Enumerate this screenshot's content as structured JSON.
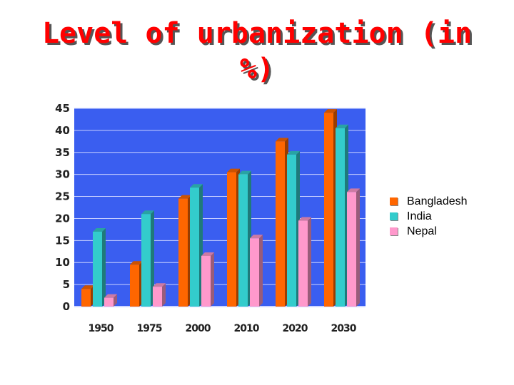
{
  "title_lines": [
    "Level of urbanization (in",
    "%)"
  ],
  "colors": {
    "plot_bg": "#3a5ef0",
    "Bangladesh": "#ff6600",
    "India": "#33cccc",
    "Nepal": "#ff99cc",
    "grid": "#c8d0ff"
  },
  "chart_data": {
    "type": "bar",
    "title": "Level of urbanization (in %)",
    "categories": [
      "1950",
      "1975",
      "2000",
      "2010",
      "2020",
      "2030"
    ],
    "series": [
      {
        "name": "Bangladesh",
        "values": [
          4,
          9.5,
          24.5,
          30.5,
          37.5,
          44
        ]
      },
      {
        "name": "India",
        "values": [
          17,
          21,
          27,
          30,
          34.5,
          40.5
        ]
      },
      {
        "name": "Nepal",
        "values": [
          2,
          4.5,
          11.5,
          15.5,
          19.5,
          26
        ]
      }
    ],
    "yticks": [
      0,
      5,
      10,
      15,
      20,
      25,
      30,
      35,
      40,
      45
    ],
    "ylim": [
      0,
      45
    ],
    "xlabel": "",
    "ylabel": "",
    "grid": true,
    "legend": "right"
  }
}
